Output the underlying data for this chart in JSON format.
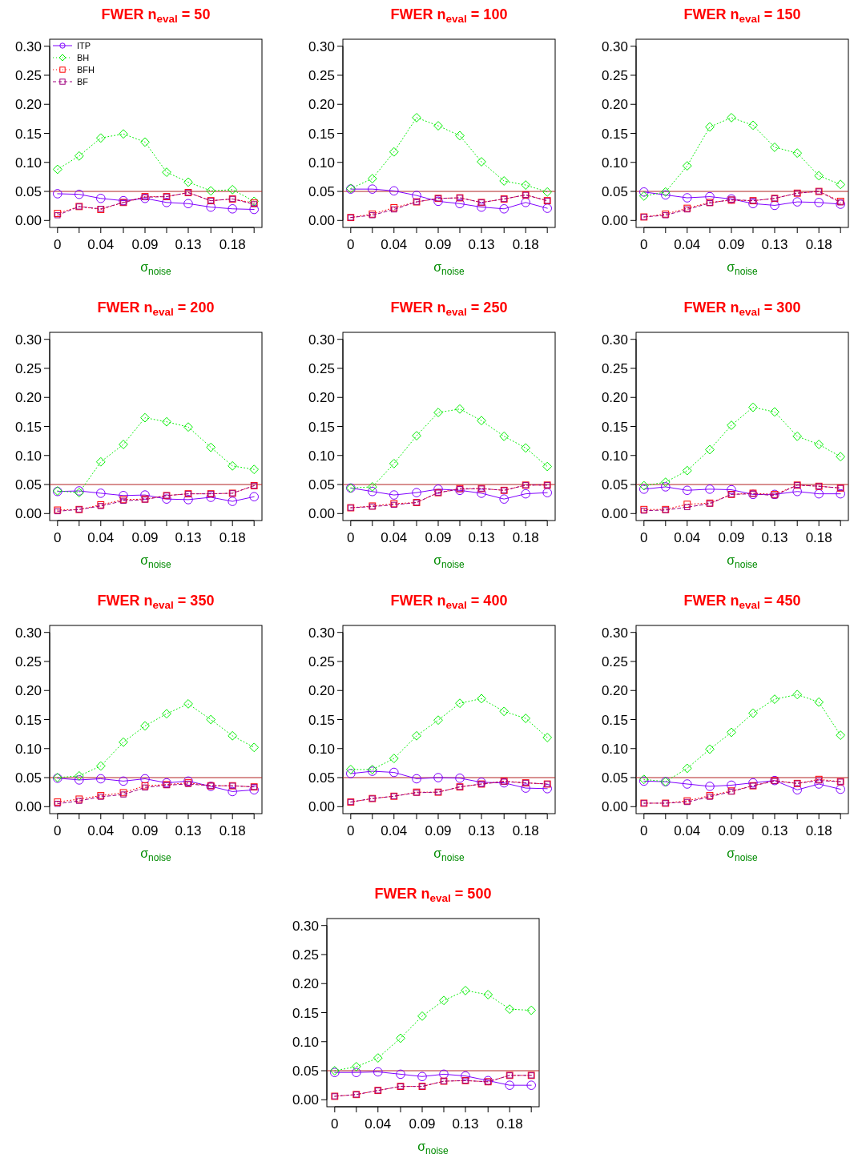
{
  "chart_data": [
    {
      "type": "line",
      "title": "FWER n$_{eval}$ = 50",
      "xlabel": "σ$_{noise}$",
      "legend": "top left",
      "x": [
        0,
        0.022,
        0.044,
        0.067,
        0.089,
        0.111,
        0.133,
        0.156,
        0.178,
        0.2
      ],
      "xlim": [
        -0.008,
        0.208
      ],
      "xticks": [
        {
          "value": 0,
          "label": "0"
        },
        {
          "value": 0.022,
          "label": null
        },
        {
          "value": 0.044,
          "label": "0.04"
        },
        {
          "value": 0.067,
          "label": null
        },
        {
          "value": 0.089,
          "label": "0.09"
        },
        {
          "value": 0.111,
          "label": null
        },
        {
          "value": 0.133,
          "label": "0.13"
        },
        {
          "value": 0.156,
          "label": null
        },
        {
          "value": 0.178,
          "label": "0.18"
        },
        {
          "value": 0.2,
          "label": null
        }
      ],
      "ylim": [
        -0.012,
        0.312
      ],
      "yticks": [
        {
          "value": 0,
          "label": "0.00"
        },
        {
          "value": 0.05,
          "label": "0.05"
        },
        {
          "value": 0.1,
          "label": "0.10"
        },
        {
          "value": 0.15,
          "label": "0.15"
        },
        {
          "value": 0.2,
          "label": "0.20"
        },
        {
          "value": 0.25,
          "label": "0.25"
        },
        {
          "value": 0.3,
          "label": "0.30"
        }
      ],
      "ref_lines": [
        {
          "axis": "y",
          "value": 0.05,
          "color": "#b22222"
        }
      ],
      "series": [
        {
          "name": "ITP",
          "color": "#7f00ff",
          "marker": "circle",
          "line_style": "solid",
          "values": [
            0.046,
            0.045,
            0.038,
            0.034,
            0.038,
            0.031,
            0.029,
            0.023,
            0.02,
            0.019
          ]
        },
        {
          "name": "BH",
          "color": "#00ee00",
          "marker": "diamond",
          "line_style": "dotted",
          "values": [
            0.088,
            0.111,
            0.142,
            0.149,
            0.135,
            0.083,
            0.066,
            0.051,
            0.053,
            0.033
          ]
        },
        {
          "name": "BFH",
          "color": "#ff0000",
          "marker": "square",
          "line_style": "dotted",
          "values": [
            0.012,
            0.024,
            0.019,
            0.031,
            0.041,
            0.041,
            0.048,
            0.034,
            0.037,
            0.03
          ]
        },
        {
          "name": "BF",
          "color": "#a0007f",
          "marker": "square",
          "line_style": "dashed",
          "values": [
            0.009,
            0.024,
            0.02,
            0.031,
            0.04,
            0.041,
            0.048,
            0.034,
            0.037,
            0.028
          ]
        }
      ]
    },
    {
      "type": "line",
      "title": "FWER n$_{eval}$ = 100",
      "xlabel": "σ$_{noise}$",
      "x": [
        0,
        0.022,
        0.044,
        0.067,
        0.089,
        0.111,
        0.133,
        0.156,
        0.178,
        0.2
      ],
      "xlim": [
        -0.008,
        0.208
      ],
      "xticks": [
        {
          "value": 0,
          "label": "0"
        },
        {
          "value": 0.022,
          "label": null
        },
        {
          "value": 0.044,
          "label": "0.04"
        },
        {
          "value": 0.067,
          "label": null
        },
        {
          "value": 0.089,
          "label": "0.09"
        },
        {
          "value": 0.111,
          "label": null
        },
        {
          "value": 0.133,
          "label": "0.13"
        },
        {
          "value": 0.156,
          "label": null
        },
        {
          "value": 0.178,
          "label": "0.18"
        },
        {
          "value": 0.2,
          "label": null
        }
      ],
      "ylim": [
        -0.012,
        0.312
      ],
      "yticks": [
        {
          "value": 0,
          "label": "0.00"
        },
        {
          "value": 0.05,
          "label": "0.05"
        },
        {
          "value": 0.1,
          "label": "0.10"
        },
        {
          "value": 0.15,
          "label": "0.15"
        },
        {
          "value": 0.2,
          "label": "0.20"
        },
        {
          "value": 0.25,
          "label": "0.25"
        },
        {
          "value": 0.3,
          "label": "0.30"
        }
      ],
      "ref_lines": [
        {
          "axis": "y",
          "value": 0.05,
          "color": "#b22222"
        }
      ],
      "series": [
        {
          "color": "#7f00ff",
          "marker": "circle",
          "line_style": "solid",
          "values": [
            0.054,
            0.054,
            0.051,
            0.043,
            0.033,
            0.029,
            0.023,
            0.02,
            0.031,
            0.021
          ]
        },
        {
          "color": "#00ee00",
          "marker": "diamond",
          "line_style": "dotted",
          "values": [
            0.055,
            0.072,
            0.118,
            0.177,
            0.163,
            0.146,
            0.101,
            0.068,
            0.061,
            0.049
          ]
        },
        {
          "color": "#ff0000",
          "marker": "square",
          "line_style": "dotted",
          "values": [
            0.005,
            0.011,
            0.022,
            0.032,
            0.038,
            0.039,
            0.031,
            0.037,
            0.044,
            0.034
          ]
        },
        {
          "color": "#a0007f",
          "marker": "square",
          "line_style": "dashed",
          "values": [
            0.005,
            0.009,
            0.019,
            0.032,
            0.038,
            0.039,
            0.031,
            0.037,
            0.044,
            0.034
          ]
        }
      ]
    },
    {
      "type": "line",
      "title": "FWER n$_{eval}$ = 150",
      "xlabel": "σ$_{noise}$",
      "x": [
        0,
        0.022,
        0.044,
        0.067,
        0.089,
        0.111,
        0.133,
        0.156,
        0.178,
        0.2
      ],
      "xlim": [
        -0.008,
        0.208
      ],
      "xticks": [
        {
          "value": 0,
          "label": "0"
        },
        {
          "value": 0.022,
          "label": null
        },
        {
          "value": 0.044,
          "label": "0.04"
        },
        {
          "value": 0.067,
          "label": null
        },
        {
          "value": 0.089,
          "label": "0.09"
        },
        {
          "value": 0.111,
          "label": null
        },
        {
          "value": 0.133,
          "label": "0.13"
        },
        {
          "value": 0.156,
          "label": null
        },
        {
          "value": 0.178,
          "label": "0.18"
        },
        {
          "value": 0.2,
          "label": null
        }
      ],
      "ylim": [
        -0.012,
        0.312
      ],
      "yticks": [
        {
          "value": 0,
          "label": "0.00"
        },
        {
          "value": 0.05,
          "label": "0.05"
        },
        {
          "value": 0.1,
          "label": "0.10"
        },
        {
          "value": 0.15,
          "label": "0.15"
        },
        {
          "value": 0.2,
          "label": "0.20"
        },
        {
          "value": 0.25,
          "label": "0.25"
        },
        {
          "value": 0.3,
          "label": "0.30"
        }
      ],
      "ref_lines": [
        {
          "axis": "y",
          "value": 0.05,
          "color": "#b22222"
        }
      ],
      "series": [
        {
          "color": "#7f00ff",
          "marker": "circle",
          "line_style": "solid",
          "values": [
            0.049,
            0.044,
            0.039,
            0.041,
            0.037,
            0.029,
            0.026,
            0.032,
            0.031,
            0.028
          ]
        },
        {
          "color": "#00ee00",
          "marker": "diamond",
          "line_style": "dotted",
          "values": [
            0.042,
            0.049,
            0.094,
            0.161,
            0.177,
            0.164,
            0.126,
            0.116,
            0.077,
            0.062
          ]
        },
        {
          "color": "#ff0000",
          "marker": "square",
          "line_style": "dotted",
          "values": [
            0.006,
            0.011,
            0.021,
            0.031,
            0.035,
            0.034,
            0.038,
            0.047,
            0.05,
            0.033
          ]
        },
        {
          "color": "#a0007f",
          "marker": "square",
          "line_style": "dashed",
          "values": [
            0.006,
            0.009,
            0.019,
            0.03,
            0.036,
            0.034,
            0.038,
            0.047,
            0.05,
            0.031
          ]
        }
      ]
    },
    {
      "type": "line",
      "title": "FWER n$_{eval}$ = 200",
      "xlabel": "σ$_{noise}$",
      "x": [
        0,
        0.022,
        0.044,
        0.067,
        0.089,
        0.111,
        0.133,
        0.156,
        0.178,
        0.2
      ],
      "xlim": [
        -0.008,
        0.208
      ],
      "xticks": [
        {
          "value": 0,
          "label": "0"
        },
        {
          "value": 0.022,
          "label": null
        },
        {
          "value": 0.044,
          "label": "0.04"
        },
        {
          "value": 0.067,
          "label": null
        },
        {
          "value": 0.089,
          "label": "0.09"
        },
        {
          "value": 0.111,
          "label": null
        },
        {
          "value": 0.133,
          "label": "0.13"
        },
        {
          "value": 0.156,
          "label": null
        },
        {
          "value": 0.178,
          "label": "0.18"
        },
        {
          "value": 0.2,
          "label": null
        }
      ],
      "ylim": [
        -0.012,
        0.312
      ],
      "yticks": [
        {
          "value": 0,
          "label": "0.00"
        },
        {
          "value": 0.05,
          "label": "0.05"
        },
        {
          "value": 0.1,
          "label": "0.10"
        },
        {
          "value": 0.15,
          "label": "0.15"
        },
        {
          "value": 0.2,
          "label": "0.20"
        },
        {
          "value": 0.25,
          "label": "0.25"
        },
        {
          "value": 0.3,
          "label": "0.30"
        }
      ],
      "ref_lines": [
        {
          "axis": "y",
          "value": 0.05,
          "color": "#b22222"
        }
      ],
      "series": [
        {
          "color": "#7f00ff",
          "marker": "circle",
          "line_style": "solid",
          "values": [
            0.038,
            0.039,
            0.035,
            0.031,
            0.032,
            0.025,
            0.024,
            0.028,
            0.021,
            0.029
          ]
        },
        {
          "color": "#00ee00",
          "marker": "diamond",
          "line_style": "dotted",
          "values": [
            0.039,
            0.036,
            0.089,
            0.119,
            0.165,
            0.158,
            0.149,
            0.114,
            0.082,
            0.076
          ]
        },
        {
          "color": "#ff0000",
          "marker": "square",
          "line_style": "dotted",
          "values": [
            0.006,
            0.007,
            0.015,
            0.024,
            0.025,
            0.031,
            0.034,
            0.034,
            0.035,
            0.048
          ]
        },
        {
          "color": "#a0007f",
          "marker": "square",
          "line_style": "dashed",
          "values": [
            0.004,
            0.007,
            0.013,
            0.022,
            0.024,
            0.031,
            0.034,
            0.034,
            0.035,
            0.048
          ]
        }
      ]
    },
    {
      "type": "line",
      "title": "FWER n$_{eval}$ = 250",
      "xlabel": "σ$_{noise}$",
      "x": [
        0,
        0.022,
        0.044,
        0.067,
        0.089,
        0.111,
        0.133,
        0.156,
        0.178,
        0.2
      ],
      "xlim": [
        -0.008,
        0.208
      ],
      "xticks": [
        {
          "value": 0,
          "label": "0"
        },
        {
          "value": 0.022,
          "label": null
        },
        {
          "value": 0.044,
          "label": "0.04"
        },
        {
          "value": 0.067,
          "label": null
        },
        {
          "value": 0.089,
          "label": "0.09"
        },
        {
          "value": 0.111,
          "label": null
        },
        {
          "value": 0.133,
          "label": "0.13"
        },
        {
          "value": 0.156,
          "label": null
        },
        {
          "value": 0.178,
          "label": "0.18"
        },
        {
          "value": 0.2,
          "label": null
        }
      ],
      "ylim": [
        -0.012,
        0.312
      ],
      "yticks": [
        {
          "value": 0,
          "label": "0.00"
        },
        {
          "value": 0.05,
          "label": "0.05"
        },
        {
          "value": 0.1,
          "label": "0.10"
        },
        {
          "value": 0.15,
          "label": "0.15"
        },
        {
          "value": 0.2,
          "label": "0.20"
        },
        {
          "value": 0.25,
          "label": "0.25"
        },
        {
          "value": 0.3,
          "label": "0.30"
        }
      ],
      "ref_lines": [
        {
          "axis": "y",
          "value": 0.05,
          "color": "#b22222"
        }
      ],
      "series": [
        {
          "color": "#7f00ff",
          "marker": "circle",
          "line_style": "solid",
          "values": [
            0.044,
            0.038,
            0.032,
            0.036,
            0.042,
            0.04,
            0.035,
            0.025,
            0.034,
            0.036
          ]
        },
        {
          "color": "#00ee00",
          "marker": "diamond",
          "line_style": "dotted",
          "values": [
            0.044,
            0.046,
            0.086,
            0.134,
            0.174,
            0.18,
            0.16,
            0.133,
            0.113,
            0.081
          ]
        },
        {
          "color": "#ff0000",
          "marker": "square",
          "line_style": "dotted",
          "values": [
            0.01,
            0.013,
            0.017,
            0.019,
            0.036,
            0.043,
            0.043,
            0.04,
            0.049,
            0.049
          ]
        },
        {
          "color": "#a0007f",
          "marker": "square",
          "line_style": "dashed",
          "values": [
            0.01,
            0.012,
            0.015,
            0.019,
            0.036,
            0.042,
            0.043,
            0.04,
            0.049,
            0.049
          ]
        }
      ]
    },
    {
      "type": "line",
      "title": "FWER n$_{eval}$ = 300",
      "xlabel": "σ$_{noise}$",
      "x": [
        0,
        0.022,
        0.044,
        0.067,
        0.089,
        0.111,
        0.133,
        0.156,
        0.178,
        0.2
      ],
      "xlim": [
        -0.008,
        0.208
      ],
      "xticks": [
        {
          "value": 0,
          "label": "0"
        },
        {
          "value": 0.022,
          "label": null
        },
        {
          "value": 0.044,
          "label": "0.04"
        },
        {
          "value": 0.067,
          "label": null
        },
        {
          "value": 0.089,
          "label": "0.09"
        },
        {
          "value": 0.111,
          "label": null
        },
        {
          "value": 0.133,
          "label": "0.13"
        },
        {
          "value": 0.156,
          "label": null
        },
        {
          "value": 0.178,
          "label": "0.18"
        },
        {
          "value": 0.2,
          "label": null
        }
      ],
      "ylim": [
        -0.012,
        0.312
      ],
      "yticks": [
        {
          "value": 0,
          "label": "0.00"
        },
        {
          "value": 0.05,
          "label": "0.05"
        },
        {
          "value": 0.1,
          "label": "0.10"
        },
        {
          "value": 0.15,
          "label": "0.15"
        },
        {
          "value": 0.2,
          "label": "0.20"
        },
        {
          "value": 0.25,
          "label": "0.25"
        },
        {
          "value": 0.3,
          "label": "0.30"
        }
      ],
      "ref_lines": [
        {
          "axis": "y",
          "value": 0.05,
          "color": "#b22222"
        }
      ],
      "series": [
        {
          "color": "#7f00ff",
          "marker": "circle",
          "line_style": "solid",
          "values": [
            0.042,
            0.046,
            0.04,
            0.042,
            0.041,
            0.033,
            0.033,
            0.038,
            0.034,
            0.034
          ]
        },
        {
          "color": "#00ee00",
          "marker": "diamond",
          "line_style": "dotted",
          "values": [
            0.048,
            0.054,
            0.074,
            0.11,
            0.152,
            0.183,
            0.175,
            0.133,
            0.119,
            0.098
          ]
        },
        {
          "color": "#ff0000",
          "marker": "square",
          "line_style": "dotted",
          "values": [
            0.007,
            0.007,
            0.016,
            0.018,
            0.033,
            0.035,
            0.033,
            0.049,
            0.047,
            0.044
          ]
        },
        {
          "color": "#a0007f",
          "marker": "square",
          "line_style": "dashed",
          "values": [
            0.005,
            0.006,
            0.011,
            0.017,
            0.033,
            0.034,
            0.031,
            0.049,
            0.047,
            0.044
          ]
        }
      ]
    },
    {
      "type": "line",
      "title": "FWER n$_{eval}$ = 350",
      "xlabel": "σ$_{noise}$",
      "x": [
        0,
        0.022,
        0.044,
        0.067,
        0.089,
        0.111,
        0.133,
        0.156,
        0.178,
        0.2
      ],
      "xlim": [
        -0.008,
        0.208
      ],
      "xticks": [
        {
          "value": 0,
          "label": "0"
        },
        {
          "value": 0.022,
          "label": null
        },
        {
          "value": 0.044,
          "label": "0.04"
        },
        {
          "value": 0.067,
          "label": null
        },
        {
          "value": 0.089,
          "label": "0.09"
        },
        {
          "value": 0.111,
          "label": null
        },
        {
          "value": 0.133,
          "label": "0.13"
        },
        {
          "value": 0.156,
          "label": null
        },
        {
          "value": 0.178,
          "label": "0.18"
        },
        {
          "value": 0.2,
          "label": null
        }
      ],
      "ylim": [
        -0.012,
        0.312
      ],
      "yticks": [
        {
          "value": 0,
          "label": "0.00"
        },
        {
          "value": 0.05,
          "label": "0.05"
        },
        {
          "value": 0.1,
          "label": "0.10"
        },
        {
          "value": 0.15,
          "label": "0.15"
        },
        {
          "value": 0.2,
          "label": "0.20"
        },
        {
          "value": 0.25,
          "label": "0.25"
        },
        {
          "value": 0.3,
          "label": "0.30"
        }
      ],
      "ref_lines": [
        {
          "axis": "y",
          "value": 0.05,
          "color": "#b22222"
        }
      ],
      "series": [
        {
          "color": "#7f00ff",
          "marker": "circle",
          "line_style": "solid",
          "values": [
            0.049,
            0.046,
            0.048,
            0.044,
            0.048,
            0.041,
            0.044,
            0.035,
            0.026,
            0.029
          ]
        },
        {
          "color": "#00ee00",
          "marker": "diamond",
          "line_style": "dotted",
          "values": [
            0.05,
            0.053,
            0.07,
            0.111,
            0.139,
            0.16,
            0.177,
            0.15,
            0.122,
            0.102
          ]
        },
        {
          "color": "#ff0000",
          "marker": "square",
          "line_style": "dotted",
          "values": [
            0.008,
            0.013,
            0.019,
            0.024,
            0.036,
            0.038,
            0.041,
            0.036,
            0.036,
            0.034
          ]
        },
        {
          "color": "#a0007f",
          "marker": "square",
          "line_style": "dashed",
          "values": [
            0.005,
            0.01,
            0.017,
            0.021,
            0.033,
            0.037,
            0.039,
            0.036,
            0.036,
            0.034
          ]
        }
      ]
    },
    {
      "type": "line",
      "title": "FWER n$_{eval}$ = 400",
      "xlabel": "σ$_{noise}$",
      "x": [
        0,
        0.022,
        0.044,
        0.067,
        0.089,
        0.111,
        0.133,
        0.156,
        0.178,
        0.2
      ],
      "xlim": [
        -0.008,
        0.208
      ],
      "xticks": [
        {
          "value": 0,
          "label": "0"
        },
        {
          "value": 0.022,
          "label": null
        },
        {
          "value": 0.044,
          "label": "0.04"
        },
        {
          "value": 0.067,
          "label": null
        },
        {
          "value": 0.089,
          "label": "0.09"
        },
        {
          "value": 0.111,
          "label": null
        },
        {
          "value": 0.133,
          "label": "0.13"
        },
        {
          "value": 0.156,
          "label": null
        },
        {
          "value": 0.178,
          "label": "0.18"
        },
        {
          "value": 0.2,
          "label": null
        }
      ],
      "ylim": [
        -0.012,
        0.312
      ],
      "yticks": [
        {
          "value": 0,
          "label": "0.00"
        },
        {
          "value": 0.05,
          "label": "0.05"
        },
        {
          "value": 0.1,
          "label": "0.10"
        },
        {
          "value": 0.15,
          "label": "0.15"
        },
        {
          "value": 0.2,
          "label": "0.20"
        },
        {
          "value": 0.25,
          "label": "0.25"
        },
        {
          "value": 0.3,
          "label": "0.30"
        }
      ],
      "ref_lines": [
        {
          "axis": "y",
          "value": 0.05,
          "color": "#b22222"
        }
      ],
      "series": [
        {
          "color": "#7f00ff",
          "marker": "circle",
          "line_style": "solid",
          "values": [
            0.057,
            0.061,
            0.059,
            0.048,
            0.05,
            0.049,
            0.042,
            0.041,
            0.032,
            0.031
          ]
        },
        {
          "color": "#00ee00",
          "marker": "diamond",
          "line_style": "dotted",
          "values": [
            0.064,
            0.064,
            0.083,
            0.122,
            0.149,
            0.178,
            0.186,
            0.164,
            0.152,
            0.119
          ]
        },
        {
          "color": "#ff0000",
          "marker": "square",
          "line_style": "dotted",
          "values": [
            0.008,
            0.014,
            0.018,
            0.025,
            0.025,
            0.034,
            0.039,
            0.044,
            0.041,
            0.039
          ]
        },
        {
          "color": "#a0007f",
          "marker": "square",
          "line_style": "dashed",
          "values": [
            0.008,
            0.014,
            0.018,
            0.024,
            0.025,
            0.034,
            0.039,
            0.043,
            0.041,
            0.039
          ]
        }
      ]
    },
    {
      "type": "line",
      "title": "FWER n$_{eval}$ = 450",
      "xlabel": "σ$_{noise}$",
      "x": [
        0,
        0.022,
        0.044,
        0.067,
        0.089,
        0.111,
        0.133,
        0.156,
        0.178,
        0.2
      ],
      "xlim": [
        -0.008,
        0.208
      ],
      "xticks": [
        {
          "value": 0,
          "label": "0"
        },
        {
          "value": 0.022,
          "label": null
        },
        {
          "value": 0.044,
          "label": "0.04"
        },
        {
          "value": 0.067,
          "label": null
        },
        {
          "value": 0.089,
          "label": "0.09"
        },
        {
          "value": 0.111,
          "label": null
        },
        {
          "value": 0.133,
          "label": "0.13"
        },
        {
          "value": 0.156,
          "label": null
        },
        {
          "value": 0.178,
          "label": "0.18"
        },
        {
          "value": 0.2,
          "label": null
        }
      ],
      "ylim": [
        -0.012,
        0.312
      ],
      "yticks": [
        {
          "value": 0,
          "label": "0.00"
        },
        {
          "value": 0.05,
          "label": "0.05"
        },
        {
          "value": 0.1,
          "label": "0.10"
        },
        {
          "value": 0.15,
          "label": "0.15"
        },
        {
          "value": 0.2,
          "label": "0.20"
        },
        {
          "value": 0.25,
          "label": "0.25"
        },
        {
          "value": 0.3,
          "label": "0.30"
        }
      ],
      "ref_lines": [
        {
          "axis": "y",
          "value": 0.05,
          "color": "#b22222"
        }
      ],
      "series": [
        {
          "color": "#7f00ff",
          "marker": "circle",
          "line_style": "solid",
          "values": [
            0.044,
            0.043,
            0.039,
            0.035,
            0.037,
            0.041,
            0.045,
            0.029,
            0.039,
            0.03
          ]
        },
        {
          "color": "#00ee00",
          "marker": "diamond",
          "line_style": "dotted",
          "values": [
            0.047,
            0.043,
            0.066,
            0.099,
            0.128,
            0.161,
            0.185,
            0.193,
            0.18,
            0.123
          ]
        },
        {
          "color": "#ff0000",
          "marker": "square",
          "line_style": "dotted",
          "values": [
            0.006,
            0.006,
            0.01,
            0.019,
            0.027,
            0.036,
            0.045,
            0.04,
            0.047,
            0.043
          ]
        },
        {
          "color": "#a0007f",
          "marker": "square",
          "line_style": "dashed",
          "values": [
            0.006,
            0.006,
            0.008,
            0.017,
            0.026,
            0.036,
            0.044,
            0.04,
            0.045,
            0.043
          ]
        }
      ]
    },
    {
      "type": "line",
      "title": "FWER n$_{eval}$ = 500",
      "xlabel": "σ$_{noise}$",
      "x": [
        0,
        0.022,
        0.044,
        0.067,
        0.089,
        0.111,
        0.133,
        0.156,
        0.178,
        0.2
      ],
      "xlim": [
        -0.008,
        0.208
      ],
      "xticks": [
        {
          "value": 0,
          "label": "0"
        },
        {
          "value": 0.022,
          "label": null
        },
        {
          "value": 0.044,
          "label": "0.04"
        },
        {
          "value": 0.067,
          "label": null
        },
        {
          "value": 0.089,
          "label": "0.09"
        },
        {
          "value": 0.111,
          "label": null
        },
        {
          "value": 0.133,
          "label": "0.13"
        },
        {
          "value": 0.156,
          "label": null
        },
        {
          "value": 0.178,
          "label": "0.18"
        },
        {
          "value": 0.2,
          "label": null
        }
      ],
      "ylim": [
        -0.012,
        0.312
      ],
      "yticks": [
        {
          "value": 0,
          "label": "0.00"
        },
        {
          "value": 0.05,
          "label": "0.05"
        },
        {
          "value": 0.1,
          "label": "0.10"
        },
        {
          "value": 0.15,
          "label": "0.15"
        },
        {
          "value": 0.2,
          "label": "0.20"
        },
        {
          "value": 0.25,
          "label": "0.25"
        },
        {
          "value": 0.3,
          "label": "0.30"
        }
      ],
      "ref_lines": [
        {
          "axis": "y",
          "value": 0.05,
          "color": "#b22222"
        }
      ],
      "series": [
        {
          "color": "#7f00ff",
          "marker": "circle",
          "line_style": "solid",
          "values": [
            0.047,
            0.047,
            0.048,
            0.044,
            0.04,
            0.044,
            0.041,
            0.033,
            0.025,
            0.025
          ]
        },
        {
          "color": "#00ee00",
          "marker": "diamond",
          "line_style": "dotted",
          "values": [
            0.05,
            0.057,
            0.072,
            0.106,
            0.144,
            0.171,
            0.188,
            0.181,
            0.156,
            0.154
          ]
        },
        {
          "color": "#ff0000",
          "marker": "square",
          "line_style": "dotted",
          "values": [
            0.006,
            0.009,
            0.016,
            0.023,
            0.023,
            0.032,
            0.033,
            0.031,
            0.042,
            0.042
          ]
        },
        {
          "color": "#a0007f",
          "marker": "square",
          "line_style": "dashed",
          "values": [
            0.006,
            0.009,
            0.016,
            0.023,
            0.023,
            0.032,
            0.033,
            0.031,
            0.042,
            0.042
          ]
        }
      ]
    }
  ]
}
